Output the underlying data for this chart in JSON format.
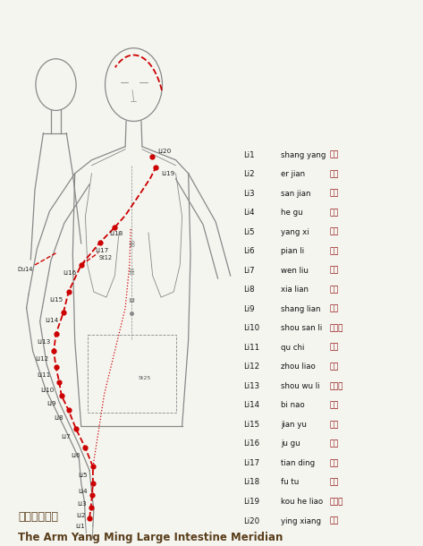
{
  "title_en": "The Arm Yang Ming Large Intestine Meridian",
  "title_cn": "手陽明大腸經",
  "title_color": "#5a3e1b",
  "bg_color": "#f5f5f0",
  "legend_items": [
    {
      "num": "Li1",
      "name": "shang yang",
      "cn": "商陽"
    },
    {
      "num": "Li2",
      "name": "er jian",
      "cn": "二間"
    },
    {
      "num": "Li3",
      "name": "san jian",
      "cn": "三間"
    },
    {
      "num": "Li4",
      "name": "he gu",
      "cn": "合谷"
    },
    {
      "num": "Li5",
      "name": "yang xi",
      "cn": "陽溪"
    },
    {
      "num": "Li6",
      "name": "pian li",
      "cn": "偏歷"
    },
    {
      "num": "Li7",
      "name": "wen liu",
      "cn": "溫溜"
    },
    {
      "num": "Li8",
      "name": "xia lian",
      "cn": "下廉"
    },
    {
      "num": "Li9",
      "name": "shang lian",
      "cn": "上廉"
    },
    {
      "num": "Li10",
      "name": "shou san li",
      "cn": "手三里"
    },
    {
      "num": "Li11",
      "name": "qu chi",
      "cn": "曲池"
    },
    {
      "num": "Li12",
      "name": "zhou liao",
      "cn": "肘髎"
    },
    {
      "num": "Li13",
      "name": "shou wu li",
      "cn": "手五里"
    },
    {
      "num": "Li14",
      "name": "bi nao",
      "cn": "臂臑"
    },
    {
      "num": "Li15",
      "name": "jian yu",
      "cn": "肩髃"
    },
    {
      "num": "Li16",
      "name": "ju gu",
      "cn": "巨骨"
    },
    {
      "num": "Li17",
      "name": "tian ding",
      "cn": "天鼎"
    },
    {
      "num": "Li18",
      "name": "fu tu",
      "cn": "扶突"
    },
    {
      "num": "Li19",
      "name": "kou he liao",
      "cn": "口禾髎"
    },
    {
      "num": "Li20",
      "name": "ying xiang",
      "cn": "迎香"
    }
  ],
  "meridian_color": "#cc0000",
  "body_color": "#888888",
  "text_color": "#222222",
  "label_color": "#111111"
}
